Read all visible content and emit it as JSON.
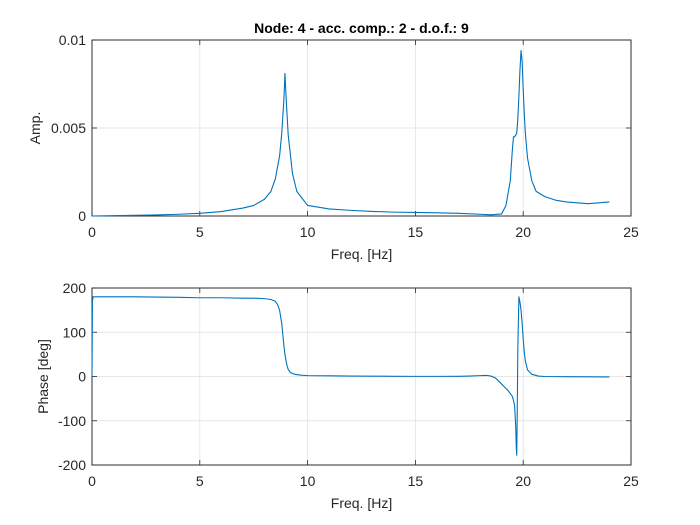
{
  "chart_data": [
    {
      "type": "line",
      "title": "Node: 4 - acc. comp.: 2 - d.o.f.: 9",
      "xlabel": "Freq. [Hz]",
      "ylabel": "Amp.",
      "xlim": [
        0,
        25
      ],
      "ylim": [
        0,
        0.01
      ],
      "xticks": [
        0,
        5,
        10,
        15,
        20,
        25
      ],
      "xtick_labels": [
        "0",
        "5",
        "10",
        "15",
        "20",
        "25"
      ],
      "yticks": [
        0,
        0.005,
        0.01
      ],
      "ytick_labels": [
        "0",
        "0.005",
        "0.01"
      ],
      "grid": true,
      "color": "#0072BD",
      "series": [
        {
          "x": [
            0,
            1,
            2,
            3,
            4,
            5,
            6,
            7,
            7.5,
            8,
            8.3,
            8.5,
            8.7,
            8.8,
            8.9,
            8.95,
            9.0,
            9.1,
            9.3,
            9.5,
            10,
            11,
            12,
            13,
            14,
            15,
            16,
            17,
            18,
            18.5,
            19,
            19.2,
            19.4,
            19.5,
            19.55,
            19.6,
            19.7,
            19.75,
            19.8,
            19.85,
            19.9,
            19.95,
            20.0,
            20.05,
            20.1,
            20.2,
            20.4,
            20.6,
            21,
            21.5,
            22,
            23,
            24
          ],
          "y": [
            0,
            2e-05,
            4e-05,
            6e-05,
            0.0001,
            0.00015,
            0.00025,
            0.00045,
            0.0006,
            0.00095,
            0.0014,
            0.0021,
            0.0034,
            0.0047,
            0.0066,
            0.0081,
            0.0068,
            0.0046,
            0.0024,
            0.0014,
            0.0006,
            0.0004,
            0.00032,
            0.00026,
            0.00022,
            0.0002,
            0.00018,
            0.00015,
            0.0001,
            7e-05,
            0.00012,
            0.0006,
            0.002,
            0.0038,
            0.0045,
            0.0045,
            0.0047,
            0.0055,
            0.0068,
            0.0083,
            0.0094,
            0.0088,
            0.0072,
            0.0058,
            0.0047,
            0.0033,
            0.002,
            0.0014,
            0.0011,
            0.0009,
            0.0008,
            0.0007,
            0.0008
          ]
        }
      ]
    },
    {
      "type": "line",
      "title": "",
      "xlabel": "Freq. [Hz]",
      "ylabel": "Phase [deg]",
      "xlim": [
        0,
        25
      ],
      "ylim": [
        -200,
        200
      ],
      "xticks": [
        0,
        5,
        10,
        15,
        20,
        25
      ],
      "xtick_labels": [
        "0",
        "5",
        "10",
        "15",
        "20",
        "25"
      ],
      "yticks": [
        -200,
        -100,
        0,
        100,
        200
      ],
      "ytick_labels": [
        "-200",
        "-100",
        "0",
        "100",
        "200"
      ],
      "grid": true,
      "color": "#0072BD",
      "series": [
        {
          "x": [
            0,
            0.02,
            0.05,
            1,
            2,
            3,
            4,
            5,
            6,
            7,
            7.5,
            8,
            8.3,
            8.5,
            8.6,
            8.7,
            8.8,
            8.85,
            8.9,
            8.95,
            9.0,
            9.05,
            9.1,
            9.2,
            9.4,
            9.7,
            10,
            11,
            12,
            13,
            14,
            15,
            16,
            17,
            17.5,
            18,
            18.3,
            18.5,
            18.7,
            18.9,
            19.1,
            19.3,
            19.5,
            19.6,
            19.65,
            19.68,
            19.7,
            19.72,
            19.75,
            19.8,
            19.85,
            19.9,
            19.95,
            20.0,
            20.05,
            20.1,
            20.2,
            20.4,
            20.7,
            21,
            22,
            23,
            24
          ],
          "y": [
            0,
            170,
            180,
            180,
            180,
            179.5,
            179,
            178,
            178,
            177,
            177,
            176,
            174,
            170,
            163,
            150,
            120,
            95,
            70,
            50,
            35,
            24,
            16,
            9,
            5,
            3,
            2,
            1.5,
            1,
            0.8,
            0.5,
            0.3,
            0.3,
            0.5,
            1,
            2,
            2.5,
            1,
            -3,
            -12,
            -22,
            -32,
            -45,
            -65,
            -110,
            -160,
            -178,
            -100,
            60,
            180,
            168,
            150,
            120,
            85,
            55,
            35,
            15,
            5,
            1,
            0,
            -0.5,
            -0.8,
            -1
          ]
        }
      ]
    }
  ]
}
